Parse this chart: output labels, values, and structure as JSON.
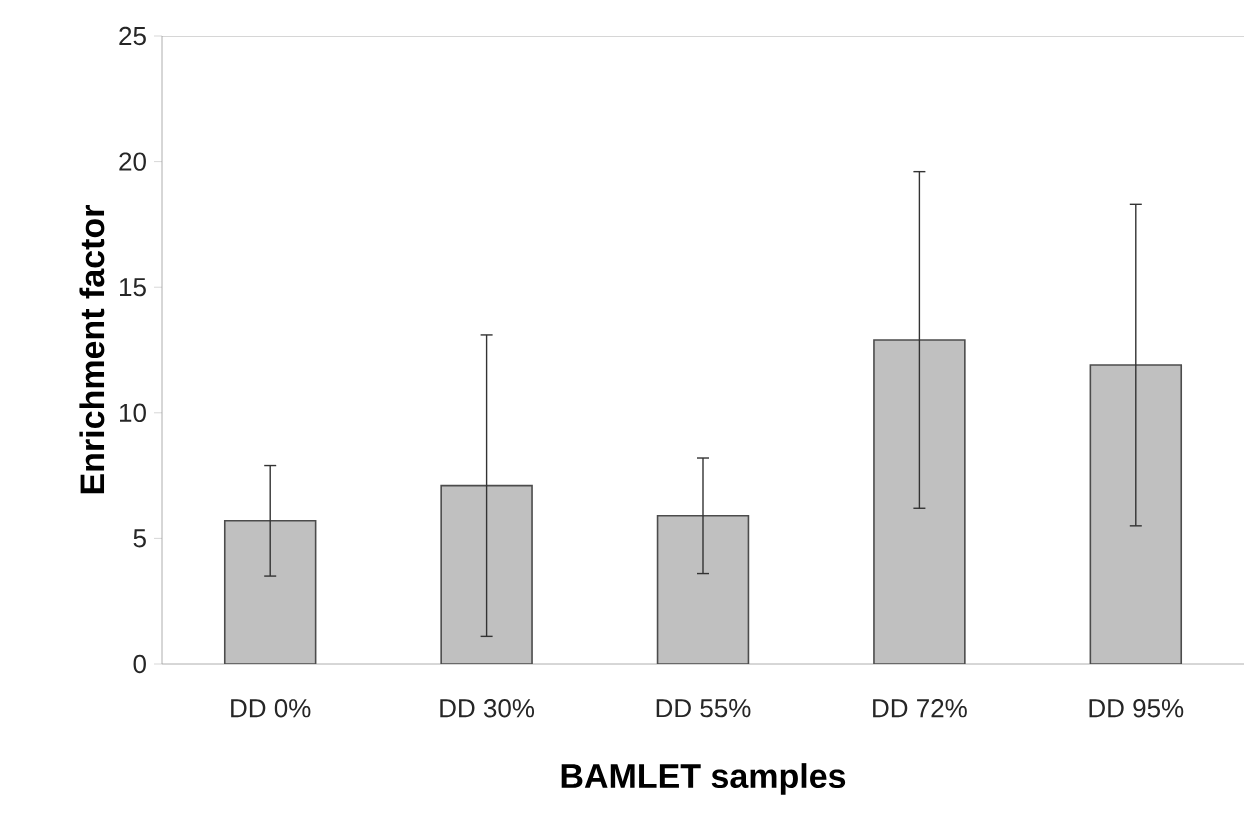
{
  "chart_data": {
    "type": "bar",
    "xlabel": "BAMLET samples",
    "ylabel": "Enrichment factor",
    "categories": [
      "DD 0%",
      "DD 30%",
      "DD 55%",
      "DD 72%",
      "DD 95%"
    ],
    "values": [
      5.7,
      7.1,
      5.9,
      12.9,
      11.9
    ],
    "errors": [
      2.2,
      6.0,
      2.3,
      6.7,
      6.4
    ],
    "color": "#c0c0c0",
    "ylim": [
      0,
      25
    ],
    "yticks": [
      0,
      5,
      10,
      15,
      20,
      25
    ],
    "grid": false
  }
}
